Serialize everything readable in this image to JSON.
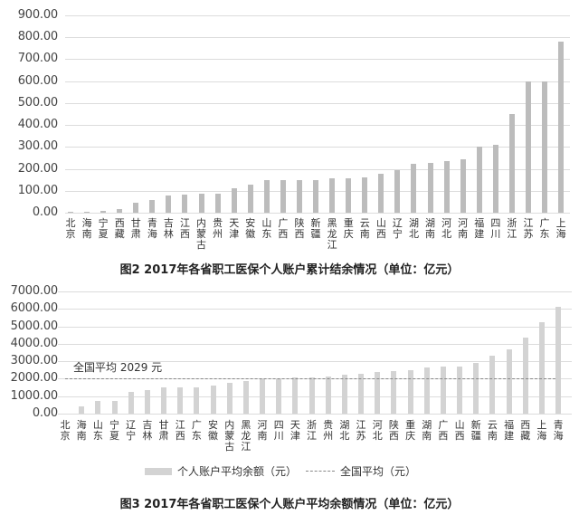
{
  "chart_data": [
    {
      "type": "bar",
      "title": "图2 2017年各省职工医保个人账户累计结余情况（单位：亿元）",
      "xlabel": "",
      "ylabel": "",
      "ylim": [
        0,
        900
      ],
      "yticks": [
        "0.00",
        "100.00",
        "200.00",
        "300.00",
        "400.00",
        "500.00",
        "600.00",
        "700.00",
        "800.00",
        "900.00"
      ],
      "grid": true,
      "bar_color": "#bcbcbc",
      "categories": [
        "北京",
        "海南",
        "宁夏",
        "西藏",
        "甘肃",
        "青海",
        "吉林",
        "江西",
        "内蒙古",
        "贵州",
        "天津",
        "安徽",
        "山东",
        "广西",
        "陕西",
        "新疆",
        "黑龙江",
        "重庆",
        "云南",
        "山西",
        "辽宁",
        "湖北",
        "湖南",
        "河北",
        "河南",
        "福建",
        "四川",
        "浙江",
        "江苏",
        "广东",
        "上海"
      ],
      "values": [
        3,
        6,
        8,
        16,
        46,
        56,
        78,
        83,
        87,
        88,
        112,
        128,
        147,
        148,
        150,
        150,
        156,
        158,
        160,
        176,
        193,
        223,
        228,
        235,
        243,
        300,
        310,
        448,
        600,
        600,
        780
      ]
    },
    {
      "type": "bar",
      "title": "图3 2017年各省职工医保个人账户平均余额情况（单位：亿元）",
      "xlabel": "",
      "ylabel": "",
      "ylim": [
        0,
        7000
      ],
      "yticks": [
        "0.00",
        "1000.00",
        "2000.00",
        "3000.00",
        "4000.00",
        "5000.00",
        "6000.00",
        "7000.00"
      ],
      "grid": true,
      "bar_color": "#d3d3d3",
      "categories": [
        "北京",
        "海南",
        "山东",
        "宁夏",
        "辽宁",
        "吉林",
        "甘肃",
        "江西",
        "广东",
        "安徽",
        "内蒙古",
        "黑龙江",
        "河南",
        "四川",
        "天津",
        "浙江",
        "贵州",
        "湖北",
        "江苏",
        "河北",
        "陕西",
        "重庆",
        "湖南",
        "广西",
        "山西",
        "新疆",
        "云南",
        "福建",
        "西藏",
        "上海",
        "青海"
      ],
      "series": [
        {
          "name": "个人账户平均余额（元）",
          "values": [
            0,
            400,
            730,
            730,
            1230,
            1330,
            1480,
            1480,
            1520,
            1600,
            1750,
            1880,
            2020,
            2030,
            2050,
            2070,
            2120,
            2220,
            2300,
            2400,
            2440,
            2470,
            2620,
            2680,
            2680,
            2880,
            3300,
            3680,
            4340,
            5220,
            6100
          ]
        },
        {
          "name": "全国平均（元）",
          "type": "line",
          "value": 2029
        }
      ],
      "annotation": "全国平均 2029 元",
      "legend_position": "bottom"
    }
  ],
  "chart1": {
    "caption": "图2 2017年各省职工医保个人账户累计结余情况（单位：亿元）"
  },
  "chart2": {
    "caption": "图3 2017年各省职工医保个人账户平均余额情况（单位：亿元）",
    "avg_label": "全国平均 2029 元",
    "legend_bar": "个人账户平均余额（元）",
    "legend_line": "全国平均（元）"
  }
}
